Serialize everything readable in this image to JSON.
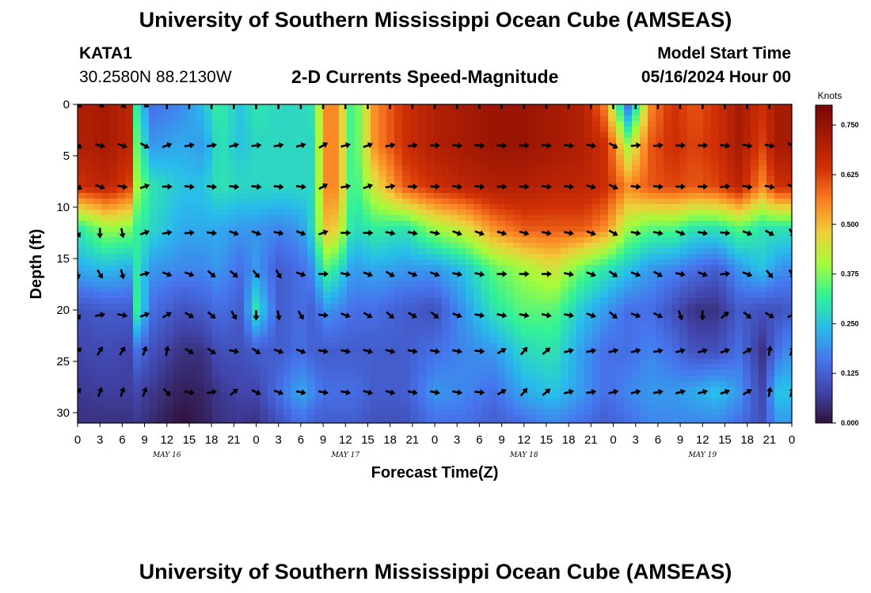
{
  "title": "University of Southern Mississippi Ocean Cube (AMSEAS)",
  "bottom_title": "University of Southern Mississippi Ocean Cube (AMSEAS)",
  "station": {
    "id": "KATA1",
    "coords": "30.2580N  88.2130W"
  },
  "model_start": {
    "label": "Model Start Time",
    "value": "05/16/2024 Hour 00"
  },
  "colors": {
    "plot_bg": "#3a6fd6",
    "arrow": "#000000"
  },
  "chart_data": {
    "type": "heatmap",
    "title": "2-D Currents Speed-Magnitude",
    "xlabel": "Forecast Time(Z)",
    "ylabel": "Depth (ft)",
    "x_hours_range": [
      0,
      96
    ],
    "ylim": [
      0,
      31
    ],
    "y_inverted": true,
    "x_tick_labels": [
      "0",
      "3",
      "6",
      "9",
      "12",
      "15",
      "18",
      "21",
      "0",
      "3",
      "6",
      "9",
      "12",
      "15",
      "18",
      "21",
      "0",
      "3",
      "6",
      "9",
      "12",
      "15",
      "18",
      "21",
      "0",
      "3",
      "6",
      "9",
      "12",
      "15",
      "18",
      "21",
      "0"
    ],
    "y_ticks": [
      0,
      5,
      10,
      15,
      20,
      25,
      30
    ],
    "day_labels": [
      {
        "label": "MAY 16",
        "hour": 12
      },
      {
        "label": "MAY 17",
        "hour": 36
      },
      {
        "label": "MAY 18",
        "hour": 60
      },
      {
        "label": "MAY 19",
        "hour": 84
      }
    ],
    "colorbar": {
      "units": "Knots",
      "range": [
        0,
        0.8
      ],
      "tick_labels": [
        "0.000",
        "0.125",
        "0.250",
        "0.375",
        "0.500",
        "0.625",
        "0.750"
      ],
      "tick_values": [
        0,
        0.125,
        0.25,
        0.375,
        0.5,
        0.625,
        0.75
      ]
    },
    "depths_ft": [
      0,
      4,
      8,
      12,
      16,
      20,
      24,
      28,
      31
    ],
    "speed_columns": [
      {
        "hour": 0,
        "speeds": [
          0.7,
          0.7,
          0.65,
          0.3,
          0.22,
          0.1,
          0.08,
          0.06,
          0.05
        ]
      },
      {
        "hour": 4,
        "speeds": [
          0.72,
          0.72,
          0.68,
          0.4,
          0.24,
          0.12,
          0.09,
          0.07,
          0.05
        ]
      },
      {
        "hour": 7,
        "speeds": [
          0.68,
          0.68,
          0.62,
          0.38,
          0.22,
          0.12,
          0.08,
          0.07,
          0.05
        ]
      },
      {
        "hour": 8,
        "speeds": [
          0.3,
          0.35,
          0.4,
          0.32,
          0.3,
          0.32,
          0.15,
          0.08,
          0.06
        ]
      },
      {
        "hour": 10,
        "speeds": [
          0.15,
          0.2,
          0.3,
          0.28,
          0.2,
          0.15,
          0.1,
          0.06,
          0.04
        ]
      },
      {
        "hour": 14,
        "speeds": [
          0.18,
          0.22,
          0.25,
          0.22,
          0.18,
          0.1,
          0.05,
          0.02,
          0.0
        ]
      },
      {
        "hour": 17,
        "speeds": [
          0.25,
          0.2,
          0.25,
          0.22,
          0.18,
          0.12,
          0.05,
          0.03,
          0.02
        ]
      },
      {
        "hour": 19,
        "speeds": [
          0.32,
          0.3,
          0.3,
          0.22,
          0.2,
          0.15,
          0.1,
          0.06,
          0.05
        ]
      },
      {
        "hour": 22,
        "speeds": [
          0.25,
          0.25,
          0.28,
          0.2,
          0.15,
          0.12,
          0.1,
          0.08,
          0.06
        ]
      },
      {
        "hour": 24,
        "speeds": [
          0.3,
          0.28,
          0.28,
          0.2,
          0.2,
          0.3,
          0.12,
          0.08,
          0.05
        ]
      },
      {
        "hour": 27,
        "speeds": [
          0.28,
          0.28,
          0.28,
          0.18,
          0.12,
          0.12,
          0.12,
          0.15,
          0.1
        ]
      },
      {
        "hour": 30,
        "speeds": [
          0.28,
          0.28,
          0.28,
          0.2,
          0.15,
          0.15,
          0.15,
          0.22,
          0.15
        ]
      },
      {
        "hour": 32,
        "speeds": [
          0.3,
          0.28,
          0.28,
          0.3,
          0.2,
          0.12,
          0.12,
          0.18,
          0.12
        ]
      },
      {
        "hour": 33,
        "speeds": [
          0.55,
          0.55,
          0.55,
          0.5,
          0.35,
          0.2,
          0.12,
          0.15,
          0.12
        ]
      },
      {
        "hour": 35,
        "speeds": [
          0.55,
          0.55,
          0.55,
          0.48,
          0.3,
          0.18,
          0.12,
          0.15,
          0.12
        ]
      },
      {
        "hour": 37,
        "speeds": [
          0.3,
          0.3,
          0.3,
          0.28,
          0.2,
          0.15,
          0.12,
          0.15,
          0.12
        ]
      },
      {
        "hour": 40,
        "speeds": [
          0.55,
          0.55,
          0.45,
          0.32,
          0.22,
          0.15,
          0.12,
          0.12,
          0.1
        ]
      },
      {
        "hour": 44,
        "speeds": [
          0.65,
          0.65,
          0.6,
          0.3,
          0.2,
          0.12,
          0.12,
          0.12,
          0.1
        ]
      },
      {
        "hour": 48,
        "speeds": [
          0.7,
          0.7,
          0.65,
          0.4,
          0.2,
          0.1,
          0.15,
          0.2,
          0.15
        ]
      },
      {
        "hour": 52,
        "speeds": [
          0.72,
          0.72,
          0.68,
          0.45,
          0.25,
          0.2,
          0.18,
          0.18,
          0.15
        ]
      },
      {
        "hour": 56,
        "speeds": [
          0.74,
          0.74,
          0.7,
          0.55,
          0.35,
          0.3,
          0.2,
          0.15,
          0.12
        ]
      },
      {
        "hour": 60,
        "speeds": [
          0.74,
          0.74,
          0.7,
          0.6,
          0.4,
          0.35,
          0.28,
          0.22,
          0.15
        ]
      },
      {
        "hour": 64,
        "speeds": [
          0.72,
          0.72,
          0.68,
          0.6,
          0.45,
          0.35,
          0.3,
          0.25,
          0.18
        ]
      },
      {
        "hour": 68,
        "speeds": [
          0.7,
          0.7,
          0.68,
          0.6,
          0.35,
          0.25,
          0.2,
          0.2,
          0.15
        ]
      },
      {
        "hour": 71,
        "speeds": [
          0.55,
          0.65,
          0.65,
          0.55,
          0.3,
          0.2,
          0.15,
          0.15,
          0.12
        ]
      },
      {
        "hour": 74,
        "speeds": [
          0.15,
          0.4,
          0.55,
          0.4,
          0.25,
          0.15,
          0.15,
          0.18,
          0.15
        ]
      },
      {
        "hour": 77,
        "speeds": [
          0.55,
          0.6,
          0.6,
          0.35,
          0.2,
          0.15,
          0.18,
          0.2,
          0.18
        ]
      },
      {
        "hour": 80,
        "speeds": [
          0.65,
          0.65,
          0.62,
          0.35,
          0.18,
          0.1,
          0.15,
          0.2,
          0.18
        ]
      },
      {
        "hour": 83,
        "speeds": [
          0.6,
          0.62,
          0.6,
          0.3,
          0.15,
          0.05,
          0.1,
          0.22,
          0.18
        ]
      },
      {
        "hour": 86,
        "speeds": [
          0.65,
          0.65,
          0.62,
          0.3,
          0.12,
          0.05,
          0.1,
          0.25,
          0.18
        ]
      },
      {
        "hour": 89,
        "speeds": [
          0.72,
          0.72,
          0.68,
          0.35,
          0.2,
          0.12,
          0.15,
          0.2,
          0.15
        ]
      },
      {
        "hour": 92,
        "speeds": [
          0.65,
          0.62,
          0.55,
          0.3,
          0.25,
          0.1,
          0.05,
          0.08,
          0.1
        ]
      },
      {
        "hour": 94,
        "speeds": [
          0.72,
          0.72,
          0.65,
          0.3,
          0.2,
          0.1,
          0.15,
          0.25,
          0.2
        ]
      },
      {
        "hour": 96,
        "speeds": [
          0.72,
          0.72,
          0.65,
          0.3,
          0.18,
          0.12,
          0.2,
          0.25,
          0.2
        ]
      }
    ],
    "arrow_depths_ft": [
      0,
      4,
      8,
      12.5,
      16.5,
      20.5,
      24,
      28
    ],
    "arrow_hours": [
      0,
      3,
      6,
      9,
      12,
      15,
      18,
      21,
      24,
      27,
      30,
      33,
      36,
      39,
      42,
      45,
      48,
      51,
      54,
      57,
      60,
      63,
      66,
      69,
      72,
      75,
      78,
      81,
      84,
      87,
      90,
      93,
      96
    ],
    "arrow_directions_deg": [
      [
        125,
        120,
        135,
        120,
        0,
        0,
        0,
        0,
        0,
        0,
        0,
        0,
        0,
        0,
        0,
        0,
        0,
        0,
        0,
        0,
        0,
        0,
        0,
        0,
        0,
        0,
        0,
        0,
        0,
        0,
        0,
        0,
        125
      ],
      [
        120,
        105,
        110,
        120,
        70,
        80,
        80,
        75,
        85,
        80,
        75,
        60,
        75,
        70,
        80,
        85,
        90,
        95,
        95,
        90,
        90,
        95,
        95,
        100,
        120,
        85,
        85,
        90,
        90,
        95,
        100,
        100,
        125
      ],
      [
        120,
        110,
        100,
        70,
        90,
        95,
        95,
        95,
        95,
        95,
        95,
        60,
        80,
        70,
        80,
        90,
        90,
        95,
        95,
        90,
        90,
        95,
        95,
        105,
        115,
        95,
        95,
        90,
        90,
        85,
        100,
        100,
        120
      ],
      [
        150,
        180,
        170,
        70,
        80,
        85,
        95,
        110,
        110,
        100,
        110,
        70,
        90,
        90,
        100,
        100,
        100,
        110,
        110,
        105,
        105,
        100,
        100,
        110,
        120,
        100,
        100,
        110,
        100,
        95,
        110,
        120,
        150
      ],
      [
        170,
        150,
        165,
        75,
        110,
        110,
        130,
        130,
        140,
        150,
        110,
        90,
        100,
        110,
        120,
        110,
        110,
        100,
        100,
        90,
        90,
        90,
        100,
        110,
        125,
        110,
        120,
        100,
        110,
        85,
        110,
        140,
        150
      ],
      [
        150,
        80,
        100,
        70,
        60,
        120,
        130,
        150,
        180,
        170,
        150,
        95,
        110,
        120,
        130,
        120,
        130,
        110,
        100,
        100,
        100,
        100,
        100,
        110,
        130,
        110,
        115,
        160,
        180,
        50,
        130,
        120,
        60
      ],
      [
        50,
        30,
        30,
        20,
        10,
        120,
        125,
        100,
        125,
        110,
        110,
        100,
        100,
        105,
        105,
        100,
        100,
        100,
        95,
        60,
        40,
        50,
        75,
        80,
        75,
        75,
        80,
        75,
        75,
        70,
        60,
        10,
        20
      ],
      [
        40,
        20,
        20,
        20,
        135,
        100,
        80,
        50,
        115,
        110,
        100,
        100,
        100,
        105,
        105,
        100,
        100,
        100,
        95,
        60,
        40,
        50,
        75,
        80,
        75,
        75,
        80,
        75,
        75,
        70,
        60,
        10,
        20
      ]
    ]
  }
}
